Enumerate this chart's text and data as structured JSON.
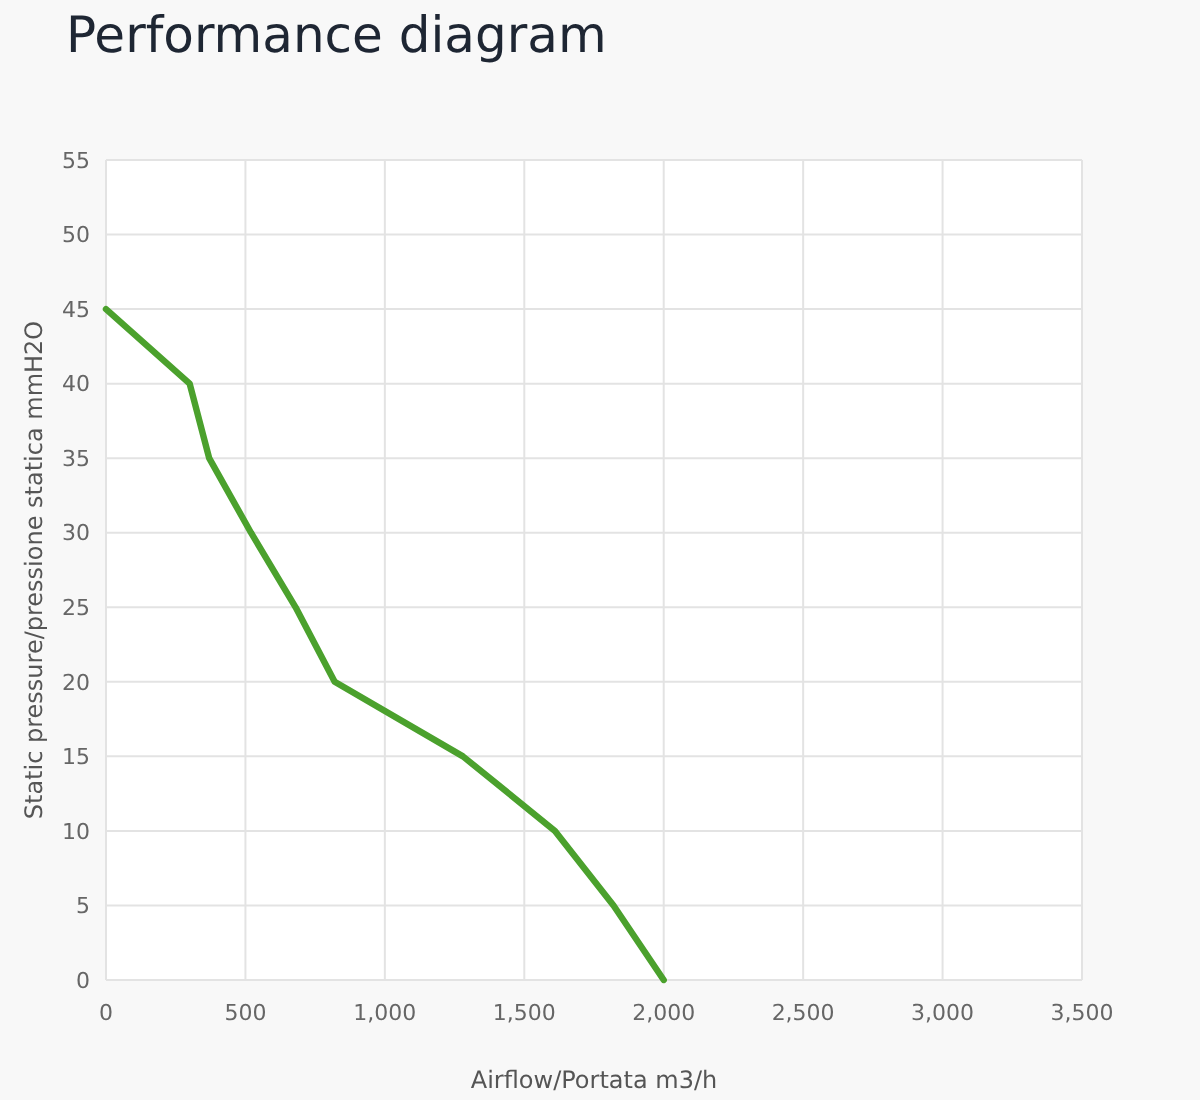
{
  "chart_data": {
    "type": "line",
    "title": "Performance diagram",
    "xlabel": "Airflow/Portata m3/h",
    "ylabel": "Static pressure/pressione statica mmH2O",
    "x": [
      0,
      300,
      370,
      520,
      680,
      820,
      1280,
      1610,
      1820,
      2000
    ],
    "series": [
      {
        "color": "#4ba12d",
        "values": [
          45,
          40,
          35,
          30,
          25,
          20,
          15,
          10,
          5,
          0
        ]
      }
    ],
    "xlim": [
      0,
      3500
    ],
    "ylim": [
      0,
      55
    ],
    "xticks": [
      0,
      500,
      {
        "value": 1000,
        "label": "1,000"
      },
      {
        "value": 1500,
        "label": "1,500"
      },
      {
        "value": 2000,
        "label": "2,000"
      },
      {
        "value": 2500,
        "label": "2,500"
      },
      {
        "value": 3000,
        "label": "3,000"
      },
      {
        "value": 3500,
        "label": "3,500"
      }
    ],
    "yticks": [
      0,
      5,
      10,
      15,
      20,
      25,
      30,
      35,
      40,
      45,
      50,
      55
    ],
    "grid": true,
    "line_style": "solid"
  }
}
